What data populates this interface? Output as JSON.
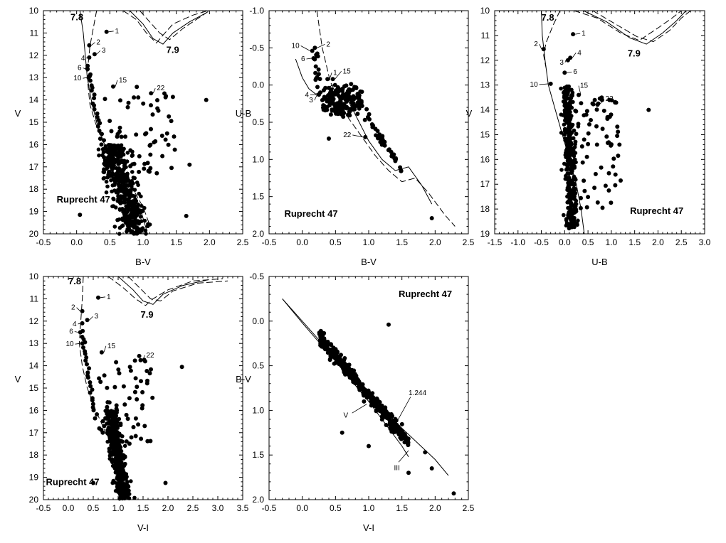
{
  "chart_data": [
    {
      "type": "scatter",
      "title": "",
      "cluster_label": "Ruprecht 47",
      "xlabel": "B-V",
      "ylabel": "V",
      "xlim": [
        -0.5,
        2.5
      ],
      "ylim": [
        10,
        20
      ],
      "y_inverted": true,
      "xticks": [
        "-0.5",
        "0.0",
        "0.5",
        "1.0",
        "1.5",
        "2.0",
        "2.5"
      ],
      "yticks": [
        "10",
        "11",
        "12",
        "13",
        "14",
        "15",
        "16",
        "17",
        "18",
        "19",
        "20"
      ],
      "isochrone_labels": [
        "7.8",
        "7.9"
      ],
      "star_labels": [
        {
          "id": "1",
          "x": 0.45,
          "y": 10.95
        },
        {
          "id": "2",
          "x": 0.19,
          "y": 11.55
        },
        {
          "id": "3",
          "x": 0.27,
          "y": 11.95
        },
        {
          "id": "4",
          "x": 0.19,
          "y": 12.1
        },
        {
          "id": "6",
          "x": 0.16,
          "y": 12.6
        },
        {
          "id": "10",
          "x": 0.18,
          "y": 13.0
        },
        {
          "id": "15",
          "x": 0.55,
          "y": 13.4
        },
        {
          "id": "22",
          "x": 1.12,
          "y": 13.7
        }
      ],
      "outliers": [
        {
          "x": 1.95,
          "y": 14.0
        },
        {
          "x": 0.05,
          "y": 19.15
        },
        {
          "x": 1.7,
          "y": 16.9
        },
        {
          "x": 1.65,
          "y": 19.2
        }
      ],
      "grid": false,
      "legend": "none"
    },
    {
      "type": "scatter",
      "title": "",
      "cluster_label": "Ruprecht 47",
      "xlabel": "B-V",
      "ylabel": "U-B",
      "xlim": [
        -0.5,
        2.5
      ],
      "ylim": [
        -1.0,
        2.0
      ],
      "y_inverted": true,
      "xticks": [
        "-0.5",
        "0.0",
        "0.5",
        "1.0",
        "1.5",
        "2.0",
        "2.5"
      ],
      "yticks": [
        "-1.0",
        "-0.5",
        "0.0",
        "0.5",
        "1.0",
        "1.5",
        "2.0"
      ],
      "star_labels": [
        {
          "id": "10",
          "x": 0.15,
          "y": -0.46
        },
        {
          "id": "2",
          "x": 0.19,
          "y": -0.5
        },
        {
          "id": "6",
          "x": 0.17,
          "y": -0.36
        },
        {
          "id": "1",
          "x": 0.38,
          "y": -0.08
        },
        {
          "id": "15",
          "x": 0.46,
          "y": -0.08
        },
        {
          "id": "4",
          "x": 0.25,
          "y": 0.13
        },
        {
          "id": "3",
          "x": 0.27,
          "y": 0.1
        },
        {
          "id": "22",
          "x": 0.95,
          "y": 0.7
        }
      ],
      "outliers": [
        {
          "x": 0.4,
          "y": 0.72
        },
        {
          "x": 1.95,
          "y": 1.79
        }
      ],
      "grid": false,
      "legend": "none"
    },
    {
      "type": "scatter",
      "title": "",
      "cluster_label": "Ruprecht 47",
      "xlabel": "U-B",
      "ylabel": "V",
      "xlim": [
        -1.5,
        3.0
      ],
      "ylim": [
        10,
        19
      ],
      "y_inverted": true,
      "xticks": [
        "-1.5",
        "-1.0",
        "-0.5",
        "0.0",
        "0.5",
        "1.0",
        "1.5",
        "2.0",
        "2.5",
        "3.0"
      ],
      "yticks": [
        "10",
        "11",
        "12",
        "13",
        "14",
        "15",
        "16",
        "17",
        "18",
        "19"
      ],
      "isochrone_labels": [
        "7.8",
        "7.9"
      ],
      "star_labels": [
        {
          "id": "1",
          "x": 0.18,
          "y": 10.95
        },
        {
          "id": "2",
          "x": -0.45,
          "y": 11.55
        },
        {
          "id": "3",
          "x": 0.07,
          "y": 12.0
        },
        {
          "id": "4",
          "x": 0.12,
          "y": 11.9
        },
        {
          "id": "6",
          "x": 0.0,
          "y": 12.5
        },
        {
          "id": "10",
          "x": -0.3,
          "y": 12.95
        },
        {
          "id": "15",
          "x": 0.3,
          "y": 13.4
        },
        {
          "id": "22",
          "x": 0.72,
          "y": 13.75
        }
      ],
      "outliers": [
        {
          "x": 1.8,
          "y": 14.0
        },
        {
          "x": 1.2,
          "y": 16.85
        }
      ],
      "grid": false,
      "legend": "none"
    },
    {
      "type": "scatter",
      "title": "",
      "cluster_label": "Ruprecht 47",
      "xlabel": "V-I",
      "ylabel": "V",
      "xlim": [
        -0.5,
        3.5
      ],
      "ylim": [
        10,
        20
      ],
      "y_inverted": true,
      "xticks": [
        "-0.5",
        "0.0",
        "0.5",
        "1.0",
        "1.5",
        "2.0",
        "2.5",
        "3.0",
        "3.5"
      ],
      "yticks": [
        "10",
        "11",
        "12",
        "13",
        "14",
        "15",
        "16",
        "17",
        "18",
        "19",
        "20"
      ],
      "isochrone_labels": [
        "7.8",
        "7.9"
      ],
      "star_labels": [
        {
          "id": "1",
          "x": 0.6,
          "y": 10.95
        },
        {
          "id": "2",
          "x": 0.28,
          "y": 11.55
        },
        {
          "id": "3",
          "x": 0.38,
          "y": 11.95
        },
        {
          "id": "4",
          "x": 0.28,
          "y": 12.1
        },
        {
          "id": "6",
          "x": 0.24,
          "y": 12.5
        },
        {
          "id": "10",
          "x": 0.28,
          "y": 13.0
        },
        {
          "id": "15",
          "x": 0.67,
          "y": 13.4
        },
        {
          "id": "22",
          "x": 1.45,
          "y": 13.75
        }
      ],
      "outliers": [
        {
          "x": 2.28,
          "y": 14.05
        },
        {
          "x": 1.95,
          "y": 19.25
        },
        {
          "x": 0.5,
          "y": 19.25
        }
      ],
      "grid": false,
      "legend": "none"
    },
    {
      "type": "scatter",
      "title": "",
      "cluster_label": "Ruprecht 47",
      "xlabel": "V-I",
      "ylabel": "B-V",
      "xlim": [
        -0.5,
        2.5
      ],
      "ylim": [
        -0.5,
        2.0
      ],
      "y_inverted": true,
      "xticks": [
        "-0.5",
        "0.0",
        "0.5",
        "1.0",
        "1.5",
        "2.0",
        "2.5"
      ],
      "yticks": [
        "-0.5",
        "0.0",
        "0.5",
        "1.0",
        "1.5",
        "2.0"
      ],
      "annotations": [
        "1.244",
        "V",
        "III"
      ],
      "outliers": [
        {
          "x": 1.3,
          "y": 0.04
        },
        {
          "x": 0.6,
          "y": 1.25
        },
        {
          "x": 2.28,
          "y": 1.93
        },
        {
          "x": 1.95,
          "y": 1.65
        },
        {
          "x": 1.6,
          "y": 1.7
        },
        {
          "x": 1.85,
          "y": 1.47
        },
        {
          "x": 1.0,
          "y": 1.4
        }
      ],
      "grid": false,
      "legend": "none"
    }
  ]
}
